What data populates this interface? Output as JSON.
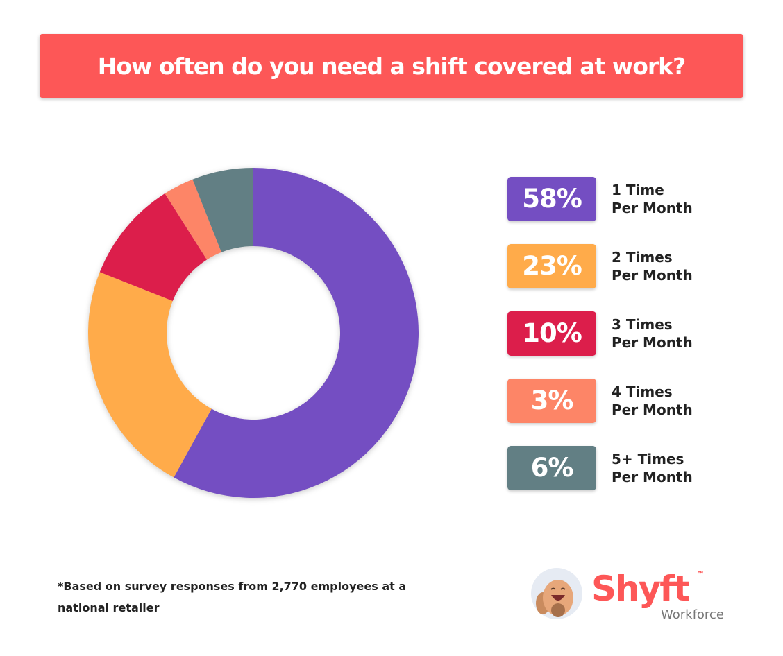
{
  "chart_data": {
    "type": "pie",
    "title": "How often do you need a shift covered at work?",
    "slices": [
      {
        "label": "1 Time Per Month",
        "line1": "1 Time",
        "line2": "Per Month",
        "value": 58,
        "display": "58%",
        "color": "#744ec2"
      },
      {
        "label": "2 Times Per Month",
        "line1": "2 Times",
        "line2": "Per Month",
        "value": 23,
        "display": "23%",
        "color": "#ffab4a"
      },
      {
        "label": "3 Times Per Month",
        "line1": "3 Times",
        "line2": "Per Month",
        "value": 10,
        "display": "10%",
        "color": "#dc1e4b"
      },
      {
        "label": "4 Times Per Month",
        "line1": "4 Times",
        "line2": "Per Month",
        "value": 3,
        "display": "3%",
        "color": "#fd8567"
      },
      {
        "label": "5+ Times Per Month",
        "line1": "5+ Times",
        "line2": "Per Month",
        "value": 6,
        "display": "6%",
        "color": "#627f84"
      }
    ],
    "legend": "right",
    "donut": true
  },
  "footnote": "*Based on survey responses from 2,770 employees at a national retailer",
  "logo": {
    "brand": "Shyft",
    "tm": "™",
    "sub": "Workforce"
  }
}
